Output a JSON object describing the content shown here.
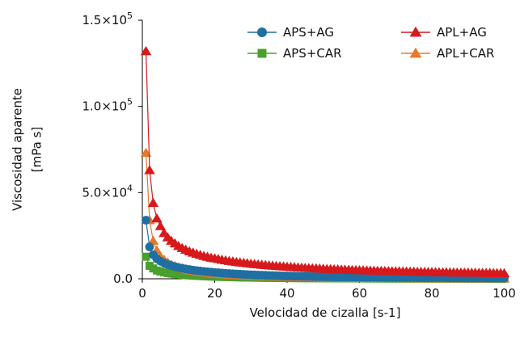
{
  "chart_data": {
    "type": "line",
    "title": "",
    "xlabel": "Velocidad de cizalla [s-1]",
    "ylabel": [
      "Viscosidad aparente",
      "[mPa s]"
    ],
    "xlim": [
      0,
      101
    ],
    "ylim": [
      0,
      150000
    ],
    "xticks": [
      0,
      20,
      40,
      60,
      80,
      100
    ],
    "xtick_labels": [
      "0",
      "20",
      "40",
      "60",
      "80",
      "100"
    ],
    "yticks": [
      0,
      50000,
      100000,
      150000
    ],
    "ytick_labels": [
      {
        "mantissa": "0.0",
        "exponent": ""
      },
      {
        "mantissa": "5.0×10",
        "exponent": "4"
      },
      {
        "mantissa": "1.0×10",
        "exponent": "5"
      },
      {
        "mantissa": "1.5×10",
        "exponent": "5"
      }
    ],
    "grid": false,
    "legend_position": "top-right",
    "x": [
      1,
      2,
      3,
      4,
      5,
      6,
      7,
      8,
      9,
      10,
      11,
      12,
      13,
      14,
      15,
      16,
      17,
      18,
      19,
      20,
      21,
      22,
      23,
      24,
      25,
      26,
      27,
      28,
      29,
      30,
      31,
      32,
      33,
      34,
      35,
      36,
      37,
      38,
      39,
      40,
      41,
      42,
      43,
      44,
      45,
      46,
      47,
      48,
      49,
      50,
      51,
      52,
      53,
      54,
      55,
      56,
      57,
      58,
      59,
      60,
      61,
      62,
      63,
      64,
      65,
      66,
      67,
      68,
      69,
      70,
      71,
      72,
      73,
      74,
      75,
      76,
      77,
      78,
      79,
      80,
      81,
      82,
      83,
      84,
      85,
      86,
      87,
      88,
      89,
      90,
      91,
      92,
      93,
      94,
      95,
      96,
      97,
      98,
      99,
      100
    ],
    "series": [
      {
        "name": "APS+AG",
        "color": "#1f6fa3",
        "marker": "circle",
        "values": [
          34000,
          18500,
          13900,
          11600,
          10200,
          9100,
          8300,
          7600,
          7000,
          6500,
          6100,
          5700,
          5350,
          5050,
          4750,
          4500,
          4250,
          4050,
          3850,
          3650,
          3480,
          3320,
          3170,
          3030,
          2900,
          2780,
          2660,
          2550,
          2450,
          2350,
          2260,
          2170,
          2090,
          2010,
          1940,
          1870,
          1800,
          1740,
          1680,
          1620,
          1570,
          1520,
          1470,
          1420,
          1380,
          1340,
          1300,
          1260,
          1220,
          1190,
          1160,
          1130,
          1100,
          1070,
          1040,
          1010,
          990,
          960,
          940,
          920,
          900,
          880,
          860,
          840,
          820,
          800,
          780,
          760,
          740,
          720,
          710,
          700,
          690,
          680,
          670,
          660,
          650,
          640,
          630,
          620,
          610,
          600,
          590,
          580,
          570,
          560,
          550,
          540,
          530,
          520,
          510,
          500,
          490,
          480,
          470,
          460,
          450,
          440,
          430,
          420
        ]
      },
      {
        "name": "APS+CAR",
        "color": "#4aa02c",
        "marker": "square",
        "values": [
          12800,
          7500,
          6000,
          4800,
          4200,
          3700,
          3300,
          3000,
          2700,
          2500,
          2300,
          2100,
          1950,
          1800,
          1680,
          1560,
          1460,
          1360,
          1280,
          1200,
          1130,
          1060,
          1000,
          945,
          890,
          840,
          795,
          750,
          710,
          675,
          640,
          610,
          580,
          550,
          525,
          500,
          475,
          455,
          435,
          415,
          395,
          380,
          365,
          350,
          335,
          320,
          310,
          300,
          290,
          280,
          270,
          260,
          250,
          240,
          232,
          224,
          216,
          208,
          200,
          193,
          186,
          180,
          174,
          168,
          162,
          156,
          151,
          146,
          141,
          136,
          132,
          128,
          124,
          120,
          116,
          112,
          108,
          104,
          100,
          97,
          94,
          91,
          88,
          85,
          82,
          79,
          76,
          73,
          70,
          68,
          66,
          64,
          62,
          60,
          58,
          56,
          54,
          52,
          50,
          48
        ]
      },
      {
        "name": "APL+AG",
        "color": "#d7191c",
        "marker": "triangle",
        "values": [
          132000,
          63000,
          44000,
          35000,
          30500,
          26500,
          24000,
          22000,
          20500,
          19000,
          17800,
          16800,
          15900,
          15100,
          14400,
          13800,
          13200,
          12700,
          12200,
          11800,
          11400,
          11000,
          10650,
          10300,
          10000,
          9700,
          9450,
          9200,
          8950,
          8700,
          8500,
          8300,
          8100,
          7900,
          7700,
          7550,
          7400,
          7250,
          7100,
          6950,
          6800,
          6670,
          6540,
          6420,
          6300,
          6180,
          6070,
          5960,
          5860,
          5760,
          5660,
          5570,
          5480,
          5390,
          5310,
          5230,
          5150,
          5070,
          5000,
          4930,
          4860,
          4790,
          4720,
          4660,
          4600,
          4540,
          4480,
          4420,
          4360,
          4310,
          4260,
          4210,
          4160,
          4110,
          4060,
          4010,
          3970,
          3930,
          3890,
          3850,
          3810,
          3770,
          3730,
          3690,
          3650,
          3620,
          3590,
          3560,
          3530,
          3500,
          3470,
          3440,
          3410,
          3380,
          3350,
          3320,
          3290,
          3260,
          3230,
          3200
        ]
      },
      {
        "name": "APL+CAR",
        "color": "#e8782a",
        "marker": "triangle",
        "values": [
          73000,
          34000,
          22000,
          16500,
          13000,
          11000,
          9500,
          8300,
          7400,
          6600,
          6000,
          5500,
          5000,
          4600,
          4250,
          3950,
          3650,
          3400,
          3180,
          2980,
          2800,
          2640,
          2490,
          2350,
          2220,
          2100,
          1990,
          1890,
          1800,
          1710,
          1630,
          1550,
          1480,
          1410,
          1350,
          1290,
          1230,
          1180,
          1130,
          1080,
          1040,
          1000,
          960,
          925,
          890,
          860,
          830,
          800,
          770,
          745,
          720,
          695,
          672,
          650,
          628,
          607,
          587,
          568,
          550,
          532,
          515,
          499,
          483,
          468,
          453,
          439,
          425,
          412,
          399,
          387,
          375,
          364,
          353,
          342,
          332,
          322,
          312,
          303,
          294,
          285,
          277,
          269,
          261,
          253,
          246,
          239,
          232,
          225,
          219,
          213,
          207,
          201,
          195,
          190,
          185,
          180,
          175,
          170,
          165,
          160
        ]
      }
    ]
  }
}
